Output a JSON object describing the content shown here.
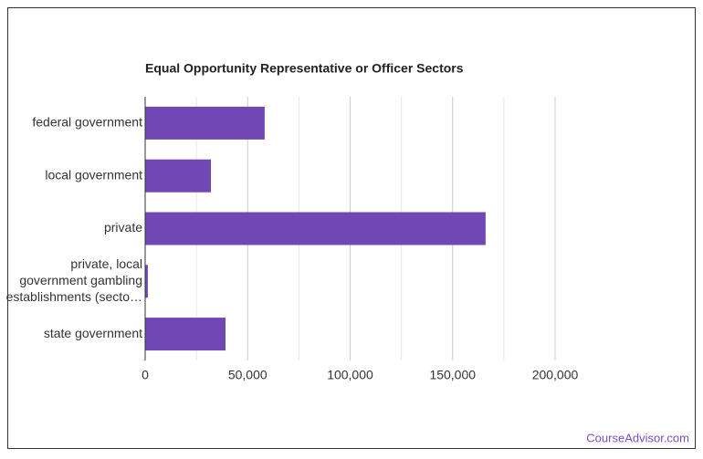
{
  "chart_data": {
    "type": "hbar",
    "title": "Equal Opportunity Representative or Officer Sectors",
    "categories": [
      [
        "federal government"
      ],
      [
        "local government"
      ],
      [
        "private"
      ],
      [
        "private, local",
        "government gambling",
        "establishments (secto…"
      ],
      [
        "state government"
      ]
    ],
    "values": [
      58300,
      32100,
      166100,
      1300,
      39200
    ],
    "color": "#7047b5",
    "xlim": [
      0,
      200000
    ],
    "xticks": [
      0,
      {
        "value": 50000,
        "label": "50,000"
      },
      {
        "value": 100000,
        "label": "100,000"
      },
      {
        "value": 150000,
        "label": "150,000"
      },
      {
        "value": 200000,
        "label": "200,000"
      }
    ],
    "xminorticks": [
      25000,
      75000,
      125000,
      175000
    ],
    "grid": true
  },
  "footer": "CourseAdvisor.com"
}
